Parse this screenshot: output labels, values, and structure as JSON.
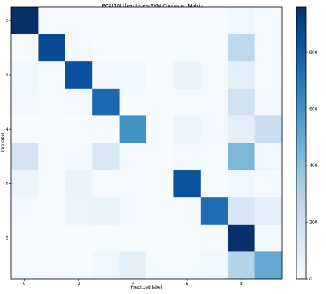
{
  "chart_data": {
    "type": "heatmap",
    "title": "PCA(10) then LinearSVM Confusion Matrix",
    "xlabel": "Predicted label",
    "ylabel": "True label",
    "x_tick_labels": [
      "0",
      "2",
      "4",
      "6",
      "8"
    ],
    "y_tick_labels": [
      "0",
      "2",
      "4",
      "6",
      "8"
    ],
    "x_tick_positions": [
      0,
      2,
      4,
      6,
      8
    ],
    "y_tick_positions": [
      0,
      2,
      4,
      6,
      8
    ],
    "rows": [
      "0",
      "1",
      "2",
      "3",
      "4",
      "5",
      "6",
      "7",
      "8",
      "9"
    ],
    "cols": [
      "0",
      "1",
      "2",
      "3",
      "4",
      "5",
      "6",
      "7",
      "8",
      "9"
    ],
    "values": [
      [
        960,
        5,
        5,
        5,
        5,
        5,
        5,
        5,
        40,
        15
      ],
      [
        5,
        860,
        20,
        10,
        5,
        5,
        10,
        5,
        260,
        15
      ],
      [
        40,
        10,
        840,
        20,
        35,
        5,
        60,
        10,
        100,
        10
      ],
      [
        30,
        10,
        20,
        750,
        10,
        10,
        10,
        20,
        190,
        20
      ],
      [
        10,
        5,
        10,
        10,
        600,
        10,
        50,
        20,
        90,
        220
      ],
      [
        170,
        10,
        20,
        140,
        20,
        5,
        20,
        10,
        440,
        40
      ],
      [
        50,
        10,
        60,
        5,
        20,
        10,
        830,
        10,
        40,
        10
      ],
      [
        20,
        5,
        50,
        60,
        20,
        5,
        5,
        730,
        150,
        90
      ],
      [
        10,
        5,
        10,
        10,
        10,
        5,
        10,
        5,
        960,
        20
      ],
      [
        10,
        5,
        10,
        40,
        100,
        10,
        10,
        40,
        300,
        500
      ]
    ],
    "colorbar": {
      "min": 0,
      "max": 960,
      "ticks": [
        0,
        200,
        400,
        600,
        800
      ],
      "tick_labels": [
        "0",
        "200",
        "400",
        "600",
        "800"
      ],
      "colormap": "Blues"
    },
    "colors": {
      "low": "#f7fbff",
      "mid": "#6baed6",
      "high": "#08306b"
    },
    "grid": false
  }
}
